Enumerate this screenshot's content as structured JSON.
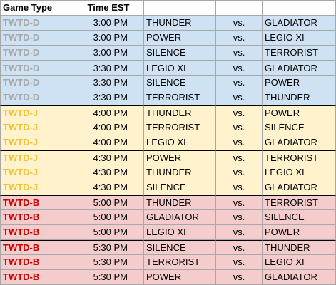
{
  "header": {
    "game_type": "Game Type",
    "time": "Time EST",
    "team1": "",
    "vs": "",
    "team2": ""
  },
  "colors": {
    "D_text": "#a8a8a8",
    "J_text": "#f1c232",
    "B_text": "#cc0000",
    "D_bg": "#cfe2f3",
    "J_bg": "#fff2cc",
    "B_bg": "#f4cccc"
  },
  "rows": [
    {
      "type": "TWTD-D",
      "time": "3:00 PM",
      "team1": "THUNDER",
      "vs": "vs.",
      "team2": "GLADIATOR"
    },
    {
      "type": "TWTD-D",
      "time": "3:00 PM",
      "team1": "POWER",
      "vs": "vs.",
      "team2": "LEGIO XI"
    },
    {
      "type": "TWTD-D",
      "time": "3:00 PM",
      "team1": "SILENCE",
      "vs": "vs.",
      "team2": "TERRORIST"
    },
    {
      "type": "TWTD-D",
      "time": "3:30 PM",
      "team1": "LEGIO XI",
      "vs": "vs.",
      "team2": "GLADIATOR"
    },
    {
      "type": "TWTD-D",
      "time": "3:30 PM",
      "team1": "SILENCE",
      "vs": "vs.",
      "team2": "POWER"
    },
    {
      "type": "TWTD-D",
      "time": "3:30 PM",
      "team1": "TERRORIST",
      "vs": "vs.",
      "team2": "THUNDER"
    },
    {
      "type": "TWTD-J",
      "time": "4:00 PM",
      "team1": "THUNDER",
      "vs": "vs.",
      "team2": "POWER"
    },
    {
      "type": "TWTD-J",
      "time": "4:00 PM",
      "team1": "TERRORIST",
      "vs": "vs.",
      "team2": "SILENCE"
    },
    {
      "type": "TWTD-J",
      "time": "4:00 PM",
      "team1": "LEGIO XI",
      "vs": "vs.",
      "team2": "GLADIATOR"
    },
    {
      "type": "TWTD-J",
      "time": "4:30 PM",
      "team1": "POWER",
      "vs": "vs.",
      "team2": "TERRORIST"
    },
    {
      "type": "TWTD-J",
      "time": "4:30 PM",
      "team1": "THUNDER",
      "vs": "vs.",
      "team2": "LEGIO XI"
    },
    {
      "type": "TWTD-J",
      "time": "4:30 PM",
      "team1": "SILENCE",
      "vs": "vs.",
      "team2": "GLADIATOR"
    },
    {
      "type": "TWTD-B",
      "time": "5:00 PM",
      "team1": "THUNDER",
      "vs": "vs.",
      "team2": "TERRORIST"
    },
    {
      "type": "TWTD-B",
      "time": "5:00 PM",
      "team1": "GLADIATOR",
      "vs": "vs.",
      "team2": "SILENCE"
    },
    {
      "type": "TWTD-B",
      "time": "5:00 PM",
      "team1": "LEGIO XI",
      "vs": "vs.",
      "team2": "POWER"
    },
    {
      "type": "TWTD-B",
      "time": "5:30 PM",
      "team1": "SILENCE",
      "vs": "vs.",
      "team2": "THUNDER"
    },
    {
      "type": "TWTD-B",
      "time": "5:30 PM",
      "team1": "TERRORIST",
      "vs": "vs.",
      "team2": "LEGIO XI"
    },
    {
      "type": "TWTD-B",
      "time": "5:30 PM",
      "team1": "POWER",
      "vs": "vs.",
      "team2": "GLADIATOR"
    }
  ]
}
